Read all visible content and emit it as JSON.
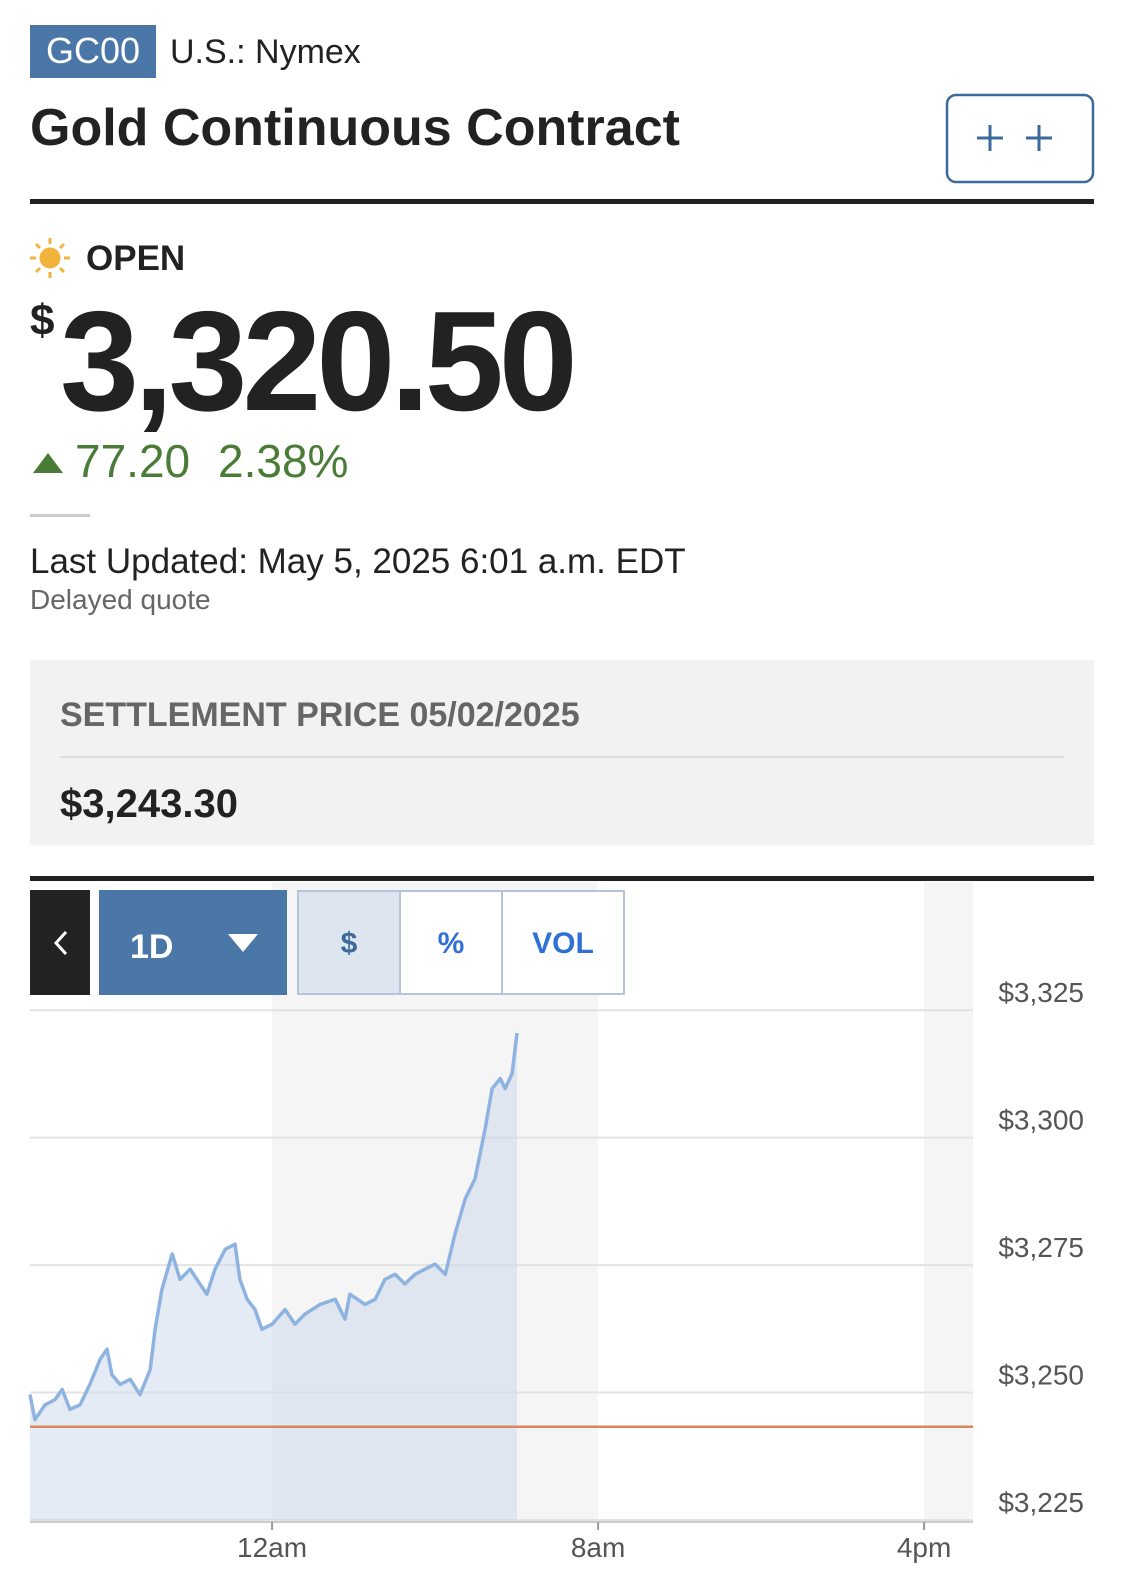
{
  "header": {
    "symbol": "GC00",
    "exchange": "U.S.: Nymex",
    "title": "Gold Continuous Contract"
  },
  "quote": {
    "status": "OPEN",
    "currency": "$",
    "price": "3,320.50",
    "change": "77.20",
    "change_percent": "2.38%",
    "last_updated": "Last Updated: May 5, 2025 6:01 a.m. EDT",
    "delay_note": "Delayed quote"
  },
  "settlement": {
    "label": "SETTLEMENT PRICE 05/02/2025",
    "price": "$3,243.30"
  },
  "chart_controls": {
    "range": "1D",
    "modes": [
      "$",
      "%",
      "VOL"
    ]
  },
  "chart_data": {
    "type": "line",
    "x": [
      -5.94,
      -5.82,
      -5.57,
      -5.33,
      -5.15,
      -4.96,
      -4.71,
      -4.47,
      -4.22,
      -4.05,
      -3.93,
      -3.73,
      -3.48,
      -3.24,
      -2.99,
      -2.87,
      -2.7,
      -2.45,
      -2.26,
      -2.01,
      -1.77,
      -1.6,
      -1.4,
      -1.15,
      -0.91,
      -0.79,
      -0.61,
      -0.42,
      -0.25,
      0,
      0.32,
      0.56,
      0.81,
      1.18,
      1.55,
      1.79,
      1.91,
      2.28,
      2.53,
      2.77,
      3.02,
      3.26,
      3.51,
      3.75,
      4.0,
      4.25,
      4.49,
      4.74,
      4.98,
      5.23,
      5.4,
      5.6,
      5.72,
      5.89,
      6.01
    ],
    "values": [
      3249.6,
      3244.7,
      3247.6,
      3248.6,
      3250.6,
      3246.7,
      3247.6,
      3251.6,
      3256.5,
      3258.5,
      3253.5,
      3251.6,
      3252.6,
      3249.6,
      3254.5,
      3262.4,
      3270.3,
      3277.2,
      3272.2,
      3274.2,
      3271.3,
      3269.3,
      3274.2,
      3278.1,
      3279.1,
      3272.2,
      3268.3,
      3266.3,
      3262.4,
      3263.4,
      3266.3,
      3263.4,
      3265.4,
      3267.3,
      3268.3,
      3264.4,
      3269.3,
      3267.3,
      3268.3,
      3272.2,
      3273.2,
      3271.3,
      3273.2,
      3274.2,
      3275.2,
      3273.2,
      3281.1,
      3288.0,
      3291.9,
      3301.8,
      3309.6,
      3311.6,
      3309.6,
      3312.6,
      3320.5
    ],
    "color": "#8fb3e0",
    "fill_color": "#c9d8ea",
    "reference_line": 3243.3,
    "reference_color": "#d9875a",
    "xlim": [
      -5.94,
      17.2
    ],
    "xticks": [
      {
        "value": 0,
        "label": "12am"
      },
      {
        "value": 8,
        "label": "8am"
      },
      {
        "value": 16,
        "label": "4pm"
      }
    ],
    "ylim": [
      3225,
      3327
    ],
    "yticks": [
      {
        "value": 3225,
        "label": "$3,225"
      },
      {
        "value": 3250,
        "label": "$3,250"
      },
      {
        "value": 3275,
        "label": "$3,275"
      },
      {
        "value": 3300,
        "label": "$3,300"
      },
      {
        "value": 3325,
        "label": "$3,325"
      }
    ],
    "grid": true
  }
}
